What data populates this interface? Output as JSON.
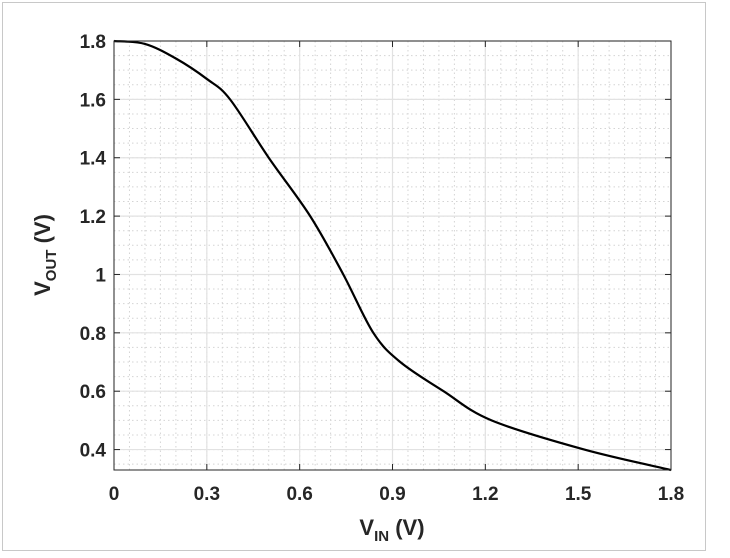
{
  "chart_data": {
    "type": "line",
    "xlabel": {
      "main": "V",
      "sub": "IN",
      "unit": " (V)"
    },
    "ylabel": {
      "main": "V",
      "sub": "OUT",
      "unit": " (V)"
    },
    "xlim": [
      0,
      1.8
    ],
    "ylim": [
      0.33,
      1.8
    ],
    "xticks": [
      "0",
      "0.3",
      "0.6",
      "0.9",
      "1.2",
      "1.5",
      "1.8"
    ],
    "yticks": [
      "0.4",
      "0.6",
      "0.8",
      "1",
      "1.2",
      "1.4",
      "1.6",
      "1.8"
    ],
    "grid": "major solid + minor dotted",
    "line_color": "#000000",
    "series": [
      {
        "x": [
          0,
          0.1,
          0.2,
          0.3,
          0.375,
          0.5,
          0.634,
          0.741,
          0.838,
          0.925,
          1.065,
          1.22,
          1.52,
          1.8
        ],
        "y": [
          1.8,
          1.79,
          1.74,
          1.67,
          1.6,
          1.4,
          1.2,
          1.0,
          0.8,
          0.7,
          0.6,
          0.5,
          0.4,
          0.33
        ]
      }
    ]
  }
}
